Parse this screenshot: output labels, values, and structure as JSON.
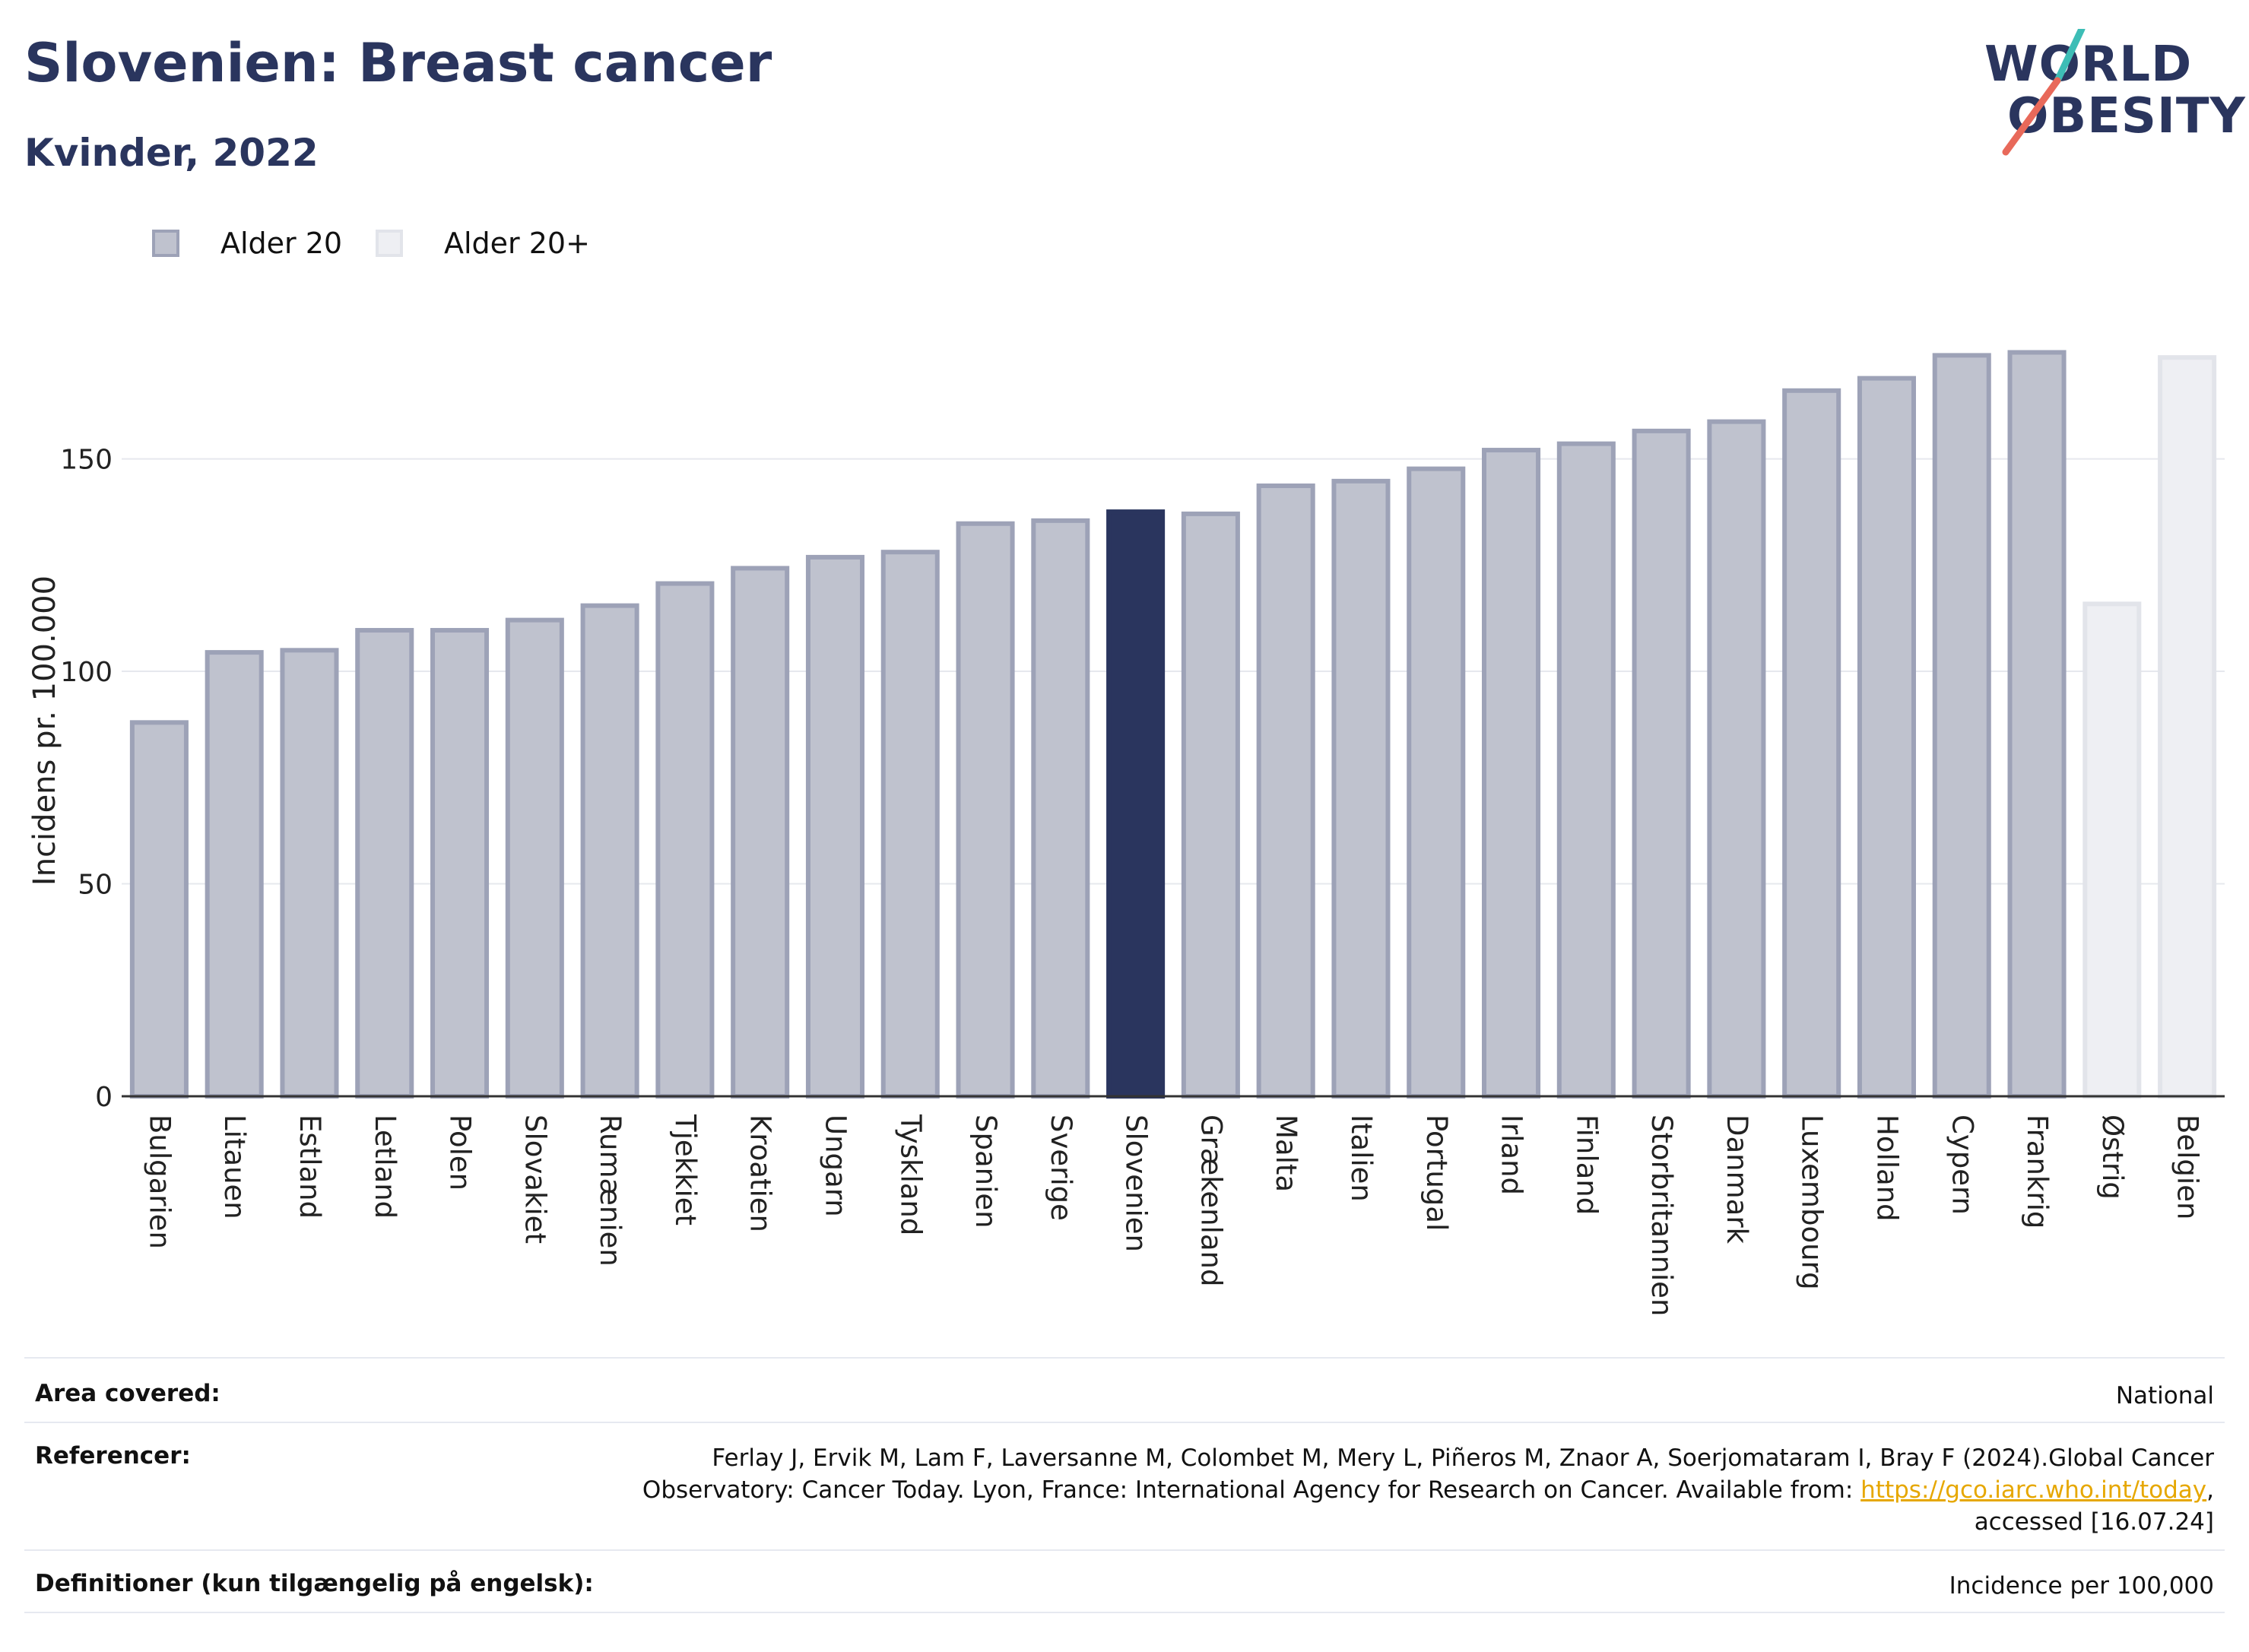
{
  "header": {
    "title": "Slovenien: Breast cancer",
    "subtitle": "Kvinder, 2022",
    "logo_line1": "WORLD",
    "logo_line2": "OBESITY"
  },
  "legend": [
    {
      "label": "Alder 20",
      "color": "#bfc2ce",
      "border": "#9da2b7"
    },
    {
      "label": "Alder 20+",
      "color": "#eeeff3",
      "border": "#e2e4ea"
    }
  ],
  "colors": {
    "highlight": "#2a355e",
    "bar_fill": "#bfc2ce",
    "bar_border": "#9da2b7",
    "bar_light_fill": "#eeeff3",
    "bar_light_border": "#e2e4ea",
    "grid": "#e6e8ee",
    "logo_teal": "#3dbdb6",
    "logo_coral": "#e8695a"
  },
  "chart_data": {
    "type": "bar",
    "ylabel": "Incidens pr. 100.000",
    "ylim": [
      0,
      190
    ],
    "yticks": [
      0,
      50,
      100,
      150
    ],
    "grid": true,
    "legend_position": "top-left",
    "categories": [
      "Bulgarien",
      "Litauen",
      "Estland",
      "Letland",
      "Polen",
      "Slovakiet",
      "Rumænien",
      "Tjekkiet",
      "Kroatien",
      "Ungarn",
      "Tyskland",
      "Spanien",
      "Sverige",
      "Slovenien",
      "Grækenland",
      "Malta",
      "Italien",
      "Portugal",
      "Irland",
      "Finland",
      "Storbritannien",
      "Danmark",
      "Luxembourg",
      "Holland",
      "Cypern",
      "Frankrig",
      "Østrig",
      "Belgien"
    ],
    "values": [
      88.5,
      105.0,
      105.5,
      110.2,
      110.2,
      112.6,
      116.0,
      121.2,
      124.8,
      127.4,
      128.6,
      135.3,
      136.0,
      138.1,
      137.6,
      144.2,
      145.3,
      148.2,
      152.6,
      154.1,
      157.1,
      159.3,
      166.6,
      169.5,
      174.9,
      175.6,
      116.4,
      174.4
    ],
    "series_index": [
      0,
      0,
      0,
      0,
      0,
      0,
      0,
      0,
      0,
      0,
      0,
      0,
      0,
      0,
      0,
      0,
      0,
      0,
      0,
      0,
      0,
      0,
      0,
      0,
      0,
      0,
      1,
      1
    ],
    "series": [
      {
        "name": "Alder 20"
      },
      {
        "name": "Alder 20+"
      }
    ],
    "highlight": "Slovenien"
  },
  "info": {
    "rows": [
      {
        "key": "Area covered:",
        "value": "National"
      },
      {
        "key": "Referencer:",
        "value_line1": "Ferlay J, Ervik M, Lam F, Laversanne M, Colombet M, Mery L, Piñeros M, Znaor A, Soerjomataram I, Bray F (2024).Global Cancer",
        "value_line2_pre": "Observatory: Cancer Today. Lyon, France: International Agency for Research on Cancer. Available from: ",
        "value_link": "https://gco.iarc.who.int/today",
        "value_line2_post": ",",
        "value_line3": "accessed [16.07.24]"
      },
      {
        "key": "Definitioner (kun tilgængelig på engelsk):",
        "value": "Incidence per 100,000"
      }
    ]
  }
}
